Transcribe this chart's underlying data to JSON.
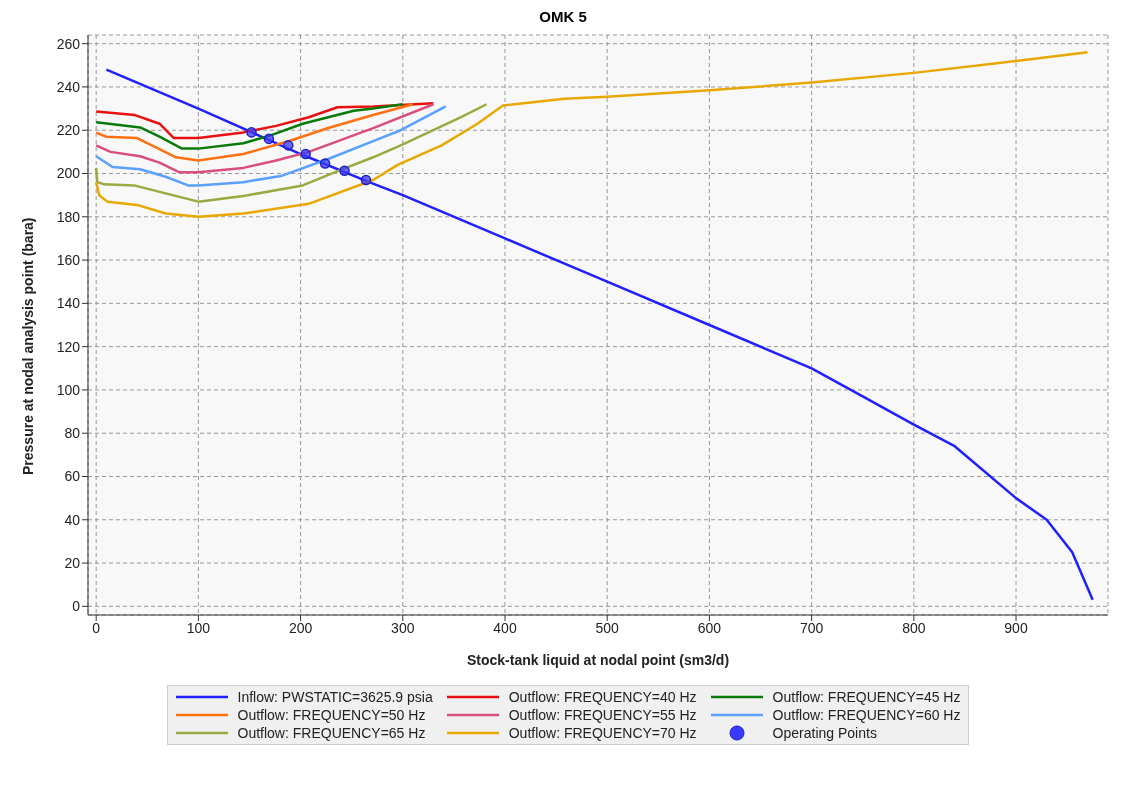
{
  "chart_data": {
    "type": "line",
    "title": "OMK 5",
    "xlabel": "Stock-tank liquid at nodal point (sm3/d)",
    "ylabel": "Pressure at nodal analysis point (bara)",
    "xlim": [
      -8,
      990
    ],
    "ylim": [
      -4,
      264
    ],
    "xticks": [
      0,
      100,
      200,
      300,
      400,
      500,
      600,
      700,
      800,
      900
    ],
    "yticks": [
      0,
      20,
      40,
      60,
      80,
      100,
      120,
      140,
      160,
      180,
      200,
      220,
      240,
      260
    ],
    "grid": true,
    "legend": "bottom",
    "marker": "none",
    "line_style": "solid",
    "series": [
      {
        "name": "Inflow: PWSTATIC=3625.9 psia",
        "color": "#2020ff",
        "x": [
          10,
          100,
          200,
          267,
          300,
          400,
          500,
          600,
          700,
          750,
          800,
          840,
          900,
          930,
          955,
          975
        ],
        "values": [
          248,
          230,
          209,
          196,
          190,
          170,
          150,
          130,
          110,
          97,
          84,
          74,
          50,
          40,
          25,
          3
        ]
      },
      {
        "name": "Outflow: FREQUENCY=40 Hz",
        "color": "#e81010",
        "x": [
          0,
          38,
          62,
          76,
          100,
          144,
          176,
          208,
          236,
          271,
          330
        ],
        "values": [
          228.6,
          227,
          223,
          216.4,
          216.4,
          219,
          222,
          226,
          230.6,
          231,
          232.5
        ]
      },
      {
        "name": "Outflow: FREQUENCY=45 Hz",
        "color": "#0a7a0a",
        "x": [
          0,
          43,
          62,
          84,
          100,
          144,
          170,
          202,
          252,
          271,
          300
        ],
        "values": [
          223.7,
          221.3,
          217,
          211.5,
          211.5,
          214,
          217.5,
          223,
          229,
          230,
          232
        ]
      },
      {
        "name": "Outflow: FREQUENCY=50 Hz",
        "color": "#ff7010",
        "x": [
          0,
          10,
          40,
          59,
          78,
          100,
          144,
          189,
          227,
          271,
          310
        ],
        "values": [
          218.9,
          217,
          216.4,
          212,
          207.5,
          206,
          209,
          215,
          221,
          227,
          232
        ]
      },
      {
        "name": "Outflow: FREQUENCY=55 Hz",
        "color": "#d94f7a",
        "x": [
          0,
          14,
          43,
          62,
          81,
          100,
          144,
          176,
          208,
          271,
          330
        ],
        "values": [
          213,
          210,
          208,
          205,
          200.6,
          200.6,
          202.6,
          206,
          210,
          221,
          232
        ]
      },
      {
        "name": "Outflow: FREQUENCY=60 Hz",
        "color": "#5aa0ff",
        "x": [
          0,
          16,
          43,
          68,
          90,
          100,
          144,
          182,
          227,
          271,
          298,
          342
        ],
        "values": [
          208,
          203,
          202,
          198.5,
          194.5,
          194.5,
          196,
          199,
          206.7,
          215,
          220,
          231
        ]
      },
      {
        "name": "Outflow: FREQUENCY=65 Hz",
        "color": "#9aaa40",
        "x": [
          0,
          1,
          8,
          37,
          100,
          144,
          202,
          240,
          271,
          298,
          357,
          382
        ],
        "values": [
          202.6,
          196,
          195,
          194.5,
          187,
          189.6,
          194.5,
          201.8,
          207.5,
          213,
          226,
          232
        ]
      },
      {
        "name": "Outflow: FREQUENCY=70 Hz",
        "color": "#e8a800",
        "x": [
          0,
          3,
          11,
          40,
          68,
          100,
          144,
          208,
          271,
          295,
          338,
          373,
          398,
          458,
          500,
          600,
          700,
          800,
          900,
          970
        ],
        "values": [
          196,
          190,
          187,
          185.5,
          181.5,
          180,
          181.5,
          186,
          197,
          204,
          213,
          223,
          231.4,
          234.5,
          235.5,
          238.5,
          242,
          246.5,
          252,
          256
        ]
      },
      {
        "name": "Operating Points",
        "type": "scatter",
        "marker": "circle",
        "color": "#3b3bff",
        "x": [
          152,
          169,
          188,
          205,
          224,
          243,
          264
        ],
        "values": [
          219,
          216,
          213,
          209,
          204.6,
          201.3,
          197
        ]
      }
    ]
  }
}
